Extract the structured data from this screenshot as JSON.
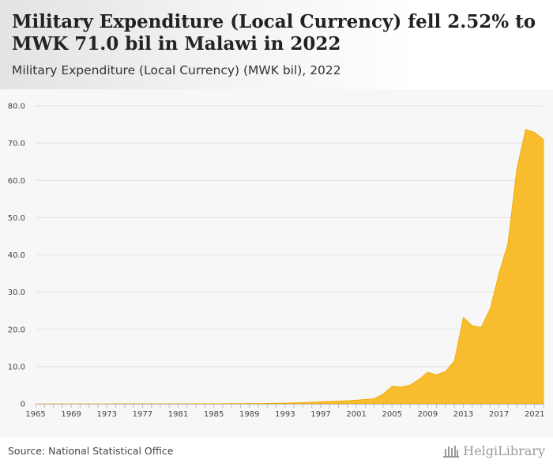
{
  "header": {
    "title": "Military Expenditure (Local Currency) fell 2.52% to MWK 71.0 bil in Malawi in 2022",
    "subtitle": "Military Expenditure (Local Currency) (MWK bil), 2022"
  },
  "footer": {
    "source": "Source: National Statistical Office",
    "logo_text": "HelgiLibrary",
    "logo_icon": "library-building-icon"
  },
  "colors": {
    "area_fill": "#f8bd2e",
    "area_stroke": "#f0a800",
    "grid": "#e2e2e2",
    "plot_background": "#f7f7f7"
  },
  "chart_data": {
    "type": "area",
    "title": "Military Expenditure (Local Currency) (MWK bil), 2022",
    "xlabel": "",
    "ylabel": "",
    "ylim": [
      0,
      80
    ],
    "xlim": [
      1965,
      2022
    ],
    "y_ticks": [
      "0",
      "10.0",
      "20.0",
      "30.0",
      "40.0",
      "50.0",
      "60.0",
      "70.0",
      "80.0"
    ],
    "x_ticks": [
      "1965",
      "1969",
      "1973",
      "1977",
      "1981",
      "1985",
      "1989",
      "1993",
      "1997",
      "2001",
      "2005",
      "2009",
      "2013",
      "2017",
      "2021"
    ],
    "grid": true,
    "legend": "none",
    "series": [
      {
        "x": [
          1965,
          1966,
          1967,
          1968,
          1969,
          1970,
          1971,
          1972,
          1973,
          1974,
          1975,
          1976,
          1977,
          1978,
          1979,
          1980,
          1981,
          1982,
          1983,
          1984,
          1985,
          1986,
          1987,
          1988,
          1989,
          1990,
          1991,
          1992,
          1993,
          1994,
          1995,
          1996,
          1997,
          1998,
          1999,
          2000,
          2001,
          2002,
          2003,
          2004,
          2005,
          2006,
          2007,
          2008,
          2009,
          2010,
          2011,
          2012,
          2013,
          2014,
          2015,
          2016,
          2017,
          2018,
          2019,
          2020,
          2021,
          2022
        ],
        "values": [
          0.0,
          0.0,
          0.0,
          0.0,
          0.0,
          0.0,
          0.0,
          0.0,
          0.0,
          0.01,
          0.01,
          0.01,
          0.01,
          0.02,
          0.02,
          0.03,
          0.03,
          0.03,
          0.04,
          0.04,
          0.05,
          0.06,
          0.07,
          0.08,
          0.09,
          0.1,
          0.12,
          0.15,
          0.2,
          0.25,
          0.35,
          0.45,
          0.55,
          0.65,
          0.75,
          0.85,
          1.0,
          1.2,
          1.4,
          2.6,
          4.7,
          4.5,
          5.0,
          6.5,
          8.5,
          7.8,
          8.7,
          11.5,
          23.2,
          21.0,
          20.5,
          25.5,
          35.0,
          43.0,
          63.0,
          73.7,
          72.9,
          71.0
        ]
      }
    ]
  }
}
